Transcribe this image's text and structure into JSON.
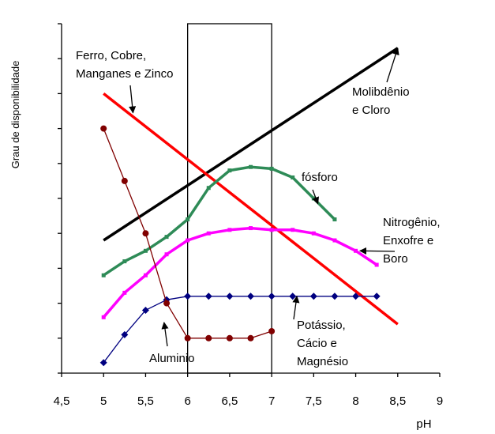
{
  "chart_data": {
    "type": "line",
    "title": "",
    "xlabel": "pH",
    "ylabel": "Grau de disponibilidade",
    "xlim": [
      4.5,
      9
    ],
    "ylim": [
      0,
      10
    ],
    "xticks": [
      "4,5",
      "5",
      "5,5",
      "6",
      "6,5",
      "7",
      "7,5",
      "8",
      "8,5",
      "9"
    ],
    "yticks": [
      0,
      1,
      2,
      3,
      4,
      5,
      6,
      7,
      8,
      9,
      10
    ],
    "grid": false,
    "legend": "none",
    "reference_box_x": [
      6,
      7
    ],
    "series": [
      {
        "key": "mo_cl",
        "color": "#000000",
        "marker": "none",
        "x": [
          5,
          8.5
        ],
        "y": [
          3.8,
          9.3
        ]
      },
      {
        "key": "fe_cu_mn_zn",
        "color": "#ff0000",
        "marker": "none",
        "x": [
          5,
          8.5
        ],
        "y": [
          8.0,
          1.4
        ]
      },
      {
        "key": "fosforo",
        "color": "#2e8b57",
        "marker": "square",
        "x": [
          5,
          5.25,
          5.5,
          5.75,
          6,
          6.25,
          6.5,
          6.75,
          7,
          7.25,
          7.5,
          7.75
        ],
        "y": [
          2.8,
          3.2,
          3.5,
          3.9,
          4.4,
          5.3,
          5.8,
          5.9,
          5.85,
          5.6,
          5.0,
          4.4
        ]
      },
      {
        "key": "n_s_b",
        "color": "#ff00ff",
        "marker": "square",
        "x": [
          5,
          5.25,
          5.5,
          5.75,
          6,
          6.25,
          6.5,
          6.75,
          7,
          7.25,
          7.5,
          7.75,
          8,
          8.25
        ],
        "y": [
          1.6,
          2.3,
          2.8,
          3.4,
          3.8,
          4.0,
          4.1,
          4.15,
          4.1,
          4.1,
          4.0,
          3.8,
          3.5,
          3.1
        ]
      },
      {
        "key": "k_ca_mg",
        "color": "#000080",
        "marker": "diamond",
        "x": [
          5,
          5.25,
          5.5,
          5.75,
          6,
          6.25,
          6.5,
          6.75,
          7,
          7.25,
          7.5,
          7.75,
          8,
          8.25
        ],
        "y": [
          0.3,
          1.1,
          1.8,
          2.1,
          2.2,
          2.2,
          2.2,
          2.2,
          2.2,
          2.2,
          2.2,
          2.2,
          2.2,
          2.2
        ]
      },
      {
        "key": "al",
        "color": "#800000",
        "marker": "circle",
        "x": [
          5,
          5.25,
          5.5,
          5.75,
          6,
          6.25,
          6.5,
          6.75,
          7
        ],
        "y": [
          7.0,
          5.5,
          4.0,
          2.0,
          1.0,
          1.0,
          1.0,
          1.0,
          1.2
        ]
      }
    ],
    "annotations": [
      {
        "key": "fe",
        "lines": [
          "Ferro, Cobre,",
          "Manganes e Zinco"
        ],
        "arrow_to": [
          5.35,
          7.45
        ]
      },
      {
        "key": "mo",
        "lines": [
          "Molibdênio",
          "e Cloro"
        ],
        "arrow_to": [
          8.5,
          9.3
        ]
      },
      {
        "key": "p",
        "lines": [
          "fósforo"
        ],
        "arrow_to": [
          7.55,
          4.85
        ]
      },
      {
        "key": "n",
        "lines": [
          "Nitrogênio,",
          "Enxofre e",
          "Boro"
        ],
        "arrow_to": [
          8.05,
          3.5
        ]
      },
      {
        "key": "k",
        "lines": [
          "Potássio,",
          "Cácio e",
          "Magnésio"
        ],
        "arrow_to": [
          7.3,
          2.2
        ]
      },
      {
        "key": "al",
        "lines": [
          "Aluminio"
        ],
        "arrow_to": [
          5.72,
          1.45
        ]
      }
    ]
  }
}
